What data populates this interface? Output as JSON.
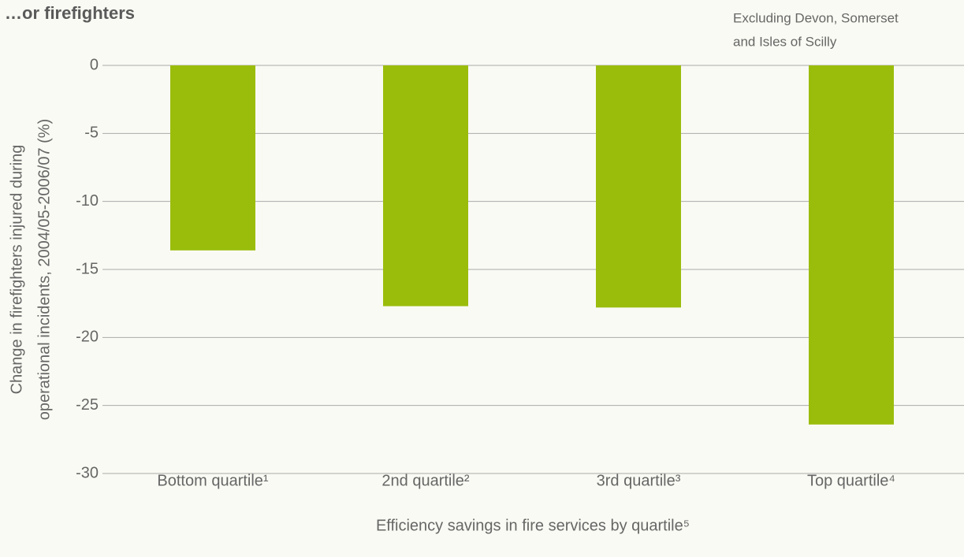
{
  "chart_data": {
    "type": "bar",
    "title": "…or firefighters",
    "annotation": [
      "Excluding Devon, Somerset",
      "and Isles of Scilly"
    ],
    "y_label": [
      "Change in firefighters injured during",
      "operational incidents, 2004/05-2006/07 (%)"
    ],
    "x_label": "Efficiency savings in fire services by quartile⁵",
    "categories": [
      "Bottom quartile¹",
      "2nd quartile²",
      "3rd quartile³",
      "Top quartile⁴"
    ],
    "values": [
      -13.6,
      -17.7,
      -17.8,
      -26.4
    ],
    "color": "#9abd0c",
    "ylim": [
      -30,
      0
    ],
    "yticks": [
      0,
      -5,
      -10,
      -15,
      -20,
      -25,
      -30
    ],
    "grid": true
  }
}
